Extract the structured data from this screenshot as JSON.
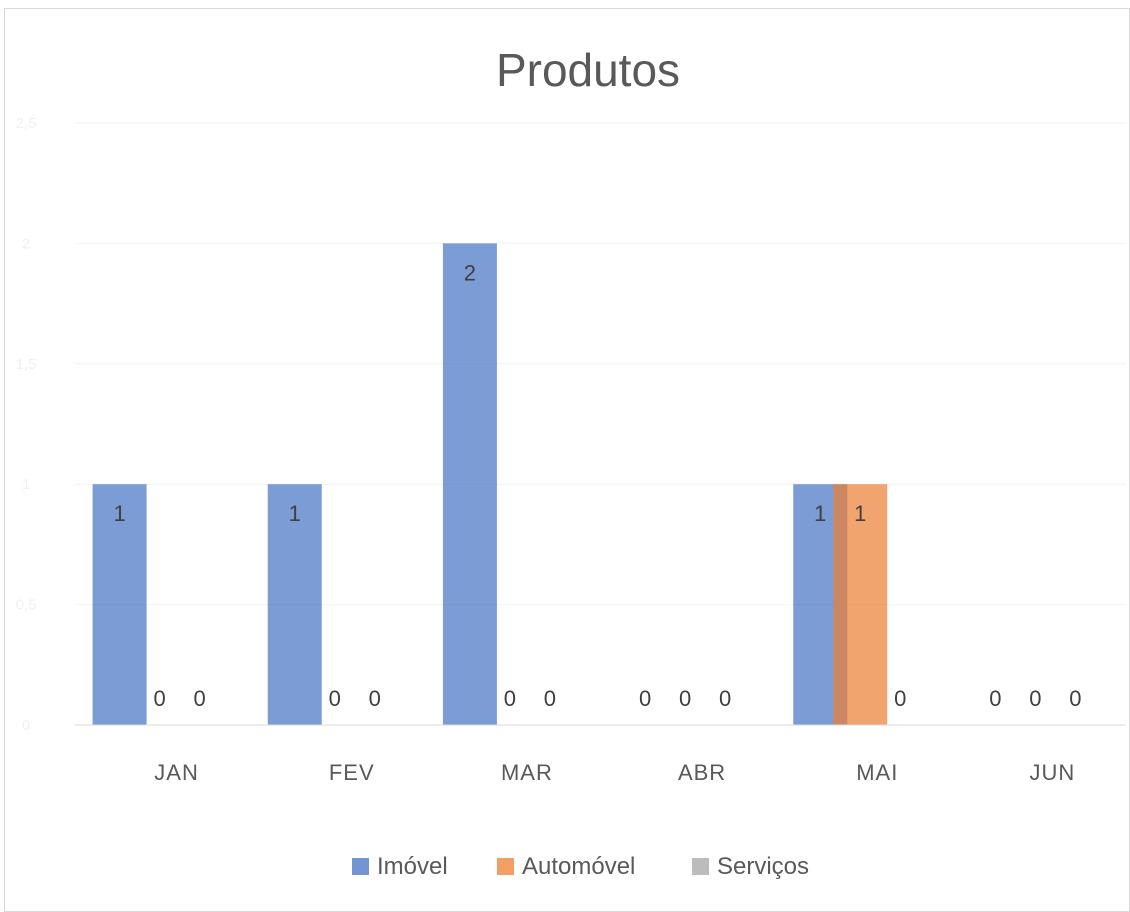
{
  "chart_data": {
    "type": "bar",
    "title": "Produtos",
    "categories": [
      "JAN",
      "FEV",
      "MAR",
      "ABR",
      "MAI",
      "JUN"
    ],
    "series": [
      {
        "name": "Imóvel",
        "color": "#4472c4",
        "values": [
          1,
          1,
          2,
          0,
          1,
          0
        ]
      },
      {
        "name": "Automóvel",
        "color": "#ed7d31",
        "values": [
          0,
          0,
          0,
          0,
          1,
          0
        ]
      },
      {
        "name": "Serviços",
        "color": "#a5a5a5",
        "values": [
          0,
          0,
          0,
          0,
          0,
          0
        ]
      }
    ],
    "ylim": [
      0,
      2.5
    ],
    "yticks": [
      "0",
      "0,5",
      "1",
      "1,5",
      "2",
      "2,5"
    ],
    "grid": true,
    "legend_position": "bottom"
  }
}
